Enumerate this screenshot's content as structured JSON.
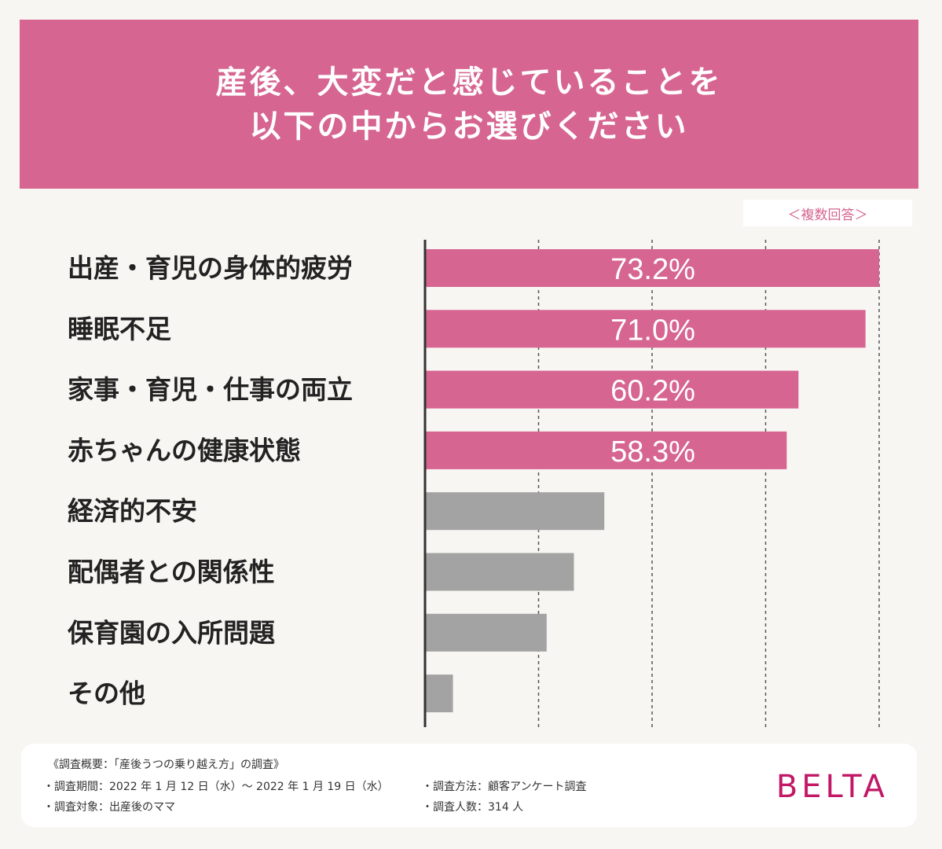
{
  "title": {
    "line1": "産後、大変だと感じていることを",
    "line2": "以下の中からお選びください"
  },
  "note": "＜複数回答＞",
  "chart_data": {
    "type": "bar",
    "orientation": "horizontal",
    "categories": [
      "出産・育児の身体的疲労",
      "睡眠不足",
      "家事・育児・仕事の両立",
      "赤ちゃんの健康状態",
      "経済的不安",
      "配偶者との関係性",
      "保育園の入所問題",
      "その他"
    ],
    "values": [
      73.2,
      71.0,
      60.2,
      58.3,
      28.9,
      24.0,
      19.6,
      4.5
    ],
    "value_labels": [
      "73.2%",
      "71.0%",
      "60.2%",
      "58.3%",
      "",
      "",
      "",
      ""
    ],
    "colors": [
      "#d66591",
      "#d66591",
      "#d66591",
      "#d66591",
      "#a3a3a3",
      "#a3a3a3",
      "#a3a3a3",
      "#a3a3a3"
    ],
    "xlim": [
      0,
      73.2
    ],
    "grid": true,
    "grid_style": "dashed"
  },
  "footer": {
    "heading": "《調査概要：「産後うつの乗り越え方」の調査》",
    "period": "・調査期間：2022 年 1 月 12 日（水）～ 2022 年 1 月 19 日（水）",
    "target": "・調査対象：出産後のママ",
    "method": "・調査方法：顧客アンケート調査",
    "count": "・調査人数：314 人",
    "brand": "BELTA"
  }
}
